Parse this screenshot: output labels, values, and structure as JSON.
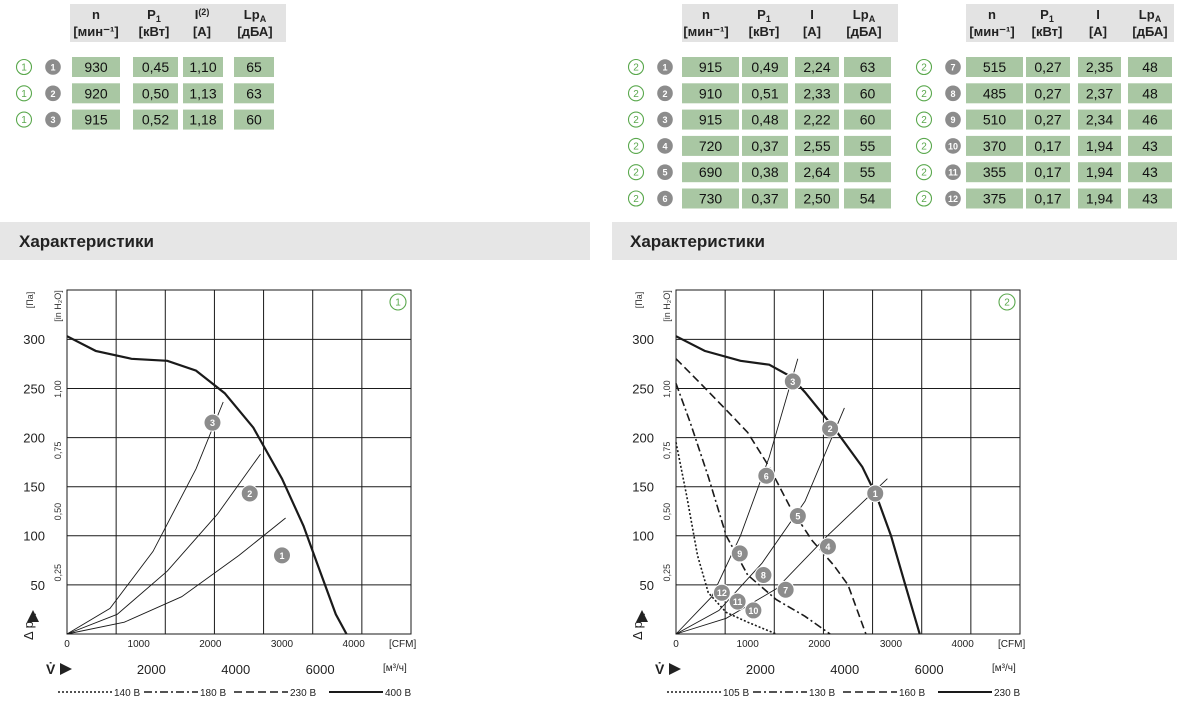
{
  "table_headers": [
    {
      "sym": "n",
      "unit": "[мин⁻¹]"
    },
    {
      "sym": "P",
      "sub": "1",
      "unit": "[кВт]"
    },
    {
      "sym": "I",
      "sup": "(2)",
      "unit": "[А]"
    },
    {
      "sym": "Lp",
      "sub": "A",
      "unit": "[дБА]"
    }
  ],
  "table_headers_right": [
    {
      "sym": "n",
      "unit": "[мин⁻¹]"
    },
    {
      "sym": "P",
      "sub": "1",
      "unit": "[кВт]"
    },
    {
      "sym": "I",
      "unit": "[А]"
    },
    {
      "sym": "Lp",
      "sub": "A",
      "unit": "[дБА]"
    }
  ],
  "table1": {
    "group": "1",
    "rows": [
      {
        "id": "1",
        "n": "930",
        "p": "0,45",
        "i": "1,10",
        "lp": "65"
      },
      {
        "id": "2",
        "n": "920",
        "p": "0,50",
        "i": "1,13",
        "lp": "63"
      },
      {
        "id": "3",
        "n": "915",
        "p": "0,52",
        "i": "1,18",
        "lp": "60"
      }
    ]
  },
  "table2": {
    "group": "2",
    "rows": [
      {
        "id": "1",
        "n": "915",
        "p": "0,49",
        "i": "2,24",
        "lp": "63"
      },
      {
        "id": "2",
        "n": "910",
        "p": "0,51",
        "i": "2,33",
        "lp": "60"
      },
      {
        "id": "3",
        "n": "915",
        "p": "0,48",
        "i": "2,22",
        "lp": "60"
      },
      {
        "id": "4",
        "n": "720",
        "p": "0,37",
        "i": "2,55",
        "lp": "55"
      },
      {
        "id": "5",
        "n": "690",
        "p": "0,38",
        "i": "2,64",
        "lp": "55"
      },
      {
        "id": "6",
        "n": "730",
        "p": "0,37",
        "i": "2,50",
        "lp": "54"
      }
    ]
  },
  "table3": {
    "group": "2",
    "rows": [
      {
        "id": "7",
        "n": "515",
        "p": "0,27",
        "i": "2,35",
        "lp": "48"
      },
      {
        "id": "8",
        "n": "485",
        "p": "0,27",
        "i": "2,37",
        "lp": "48"
      },
      {
        "id": "9",
        "n": "510",
        "p": "0,27",
        "i": "2,34",
        "lp": "46"
      },
      {
        "id": "10",
        "n": "370",
        "p": "0,17",
        "i": "1,94",
        "lp": "43"
      },
      {
        "id": "11",
        "n": "355",
        "p": "0,17",
        "i": "1,94",
        "lp": "43"
      },
      {
        "id": "12",
        "n": "375",
        "p": "0,17",
        "i": "1,94",
        "lp": "43"
      }
    ]
  },
  "section_title": "Характеристики",
  "chart_data": [
    {
      "type": "line",
      "badge": "1",
      "y_unit_pa": "[Па]",
      "y_unit_inh2o": "[in H₂O]",
      "ylabel": "Δ p",
      "ylabel_sub": "fa",
      "xlabel": "V̇",
      "x_unit_cfm": "[CFM]",
      "x_unit_m3h": "[м³/ч]",
      "xlim": [
        0,
        4800
      ],
      "ylim": [
        0,
        300
      ],
      "y_ticks": [
        50,
        100,
        150,
        200,
        250,
        300
      ],
      "y_ticks_in": [
        "0,25",
        "0,50",
        "0,75",
        "1,00"
      ],
      "y_ticks_in_values": [
        62.3,
        124.5,
        186.8,
        249.1
      ],
      "x_ticks_cfm": [
        "0",
        "1000",
        "2000",
        "3000",
        "4000"
      ],
      "x_ticks_m3h": [
        "2000",
        "4000",
        "6000"
      ],
      "x_ticks_m3h_values": [
        2000,
        4000,
        6000
      ],
      "legend": [
        {
          "label": "140 В",
          "dash": "2,2"
        },
        {
          "label": "180 В",
          "dash": "8,3,2,3"
        },
        {
          "label": "230 В",
          "dash": "8,4"
        },
        {
          "label": "400 В",
          "dash": ""
        }
      ],
      "series": [
        {
          "style": "thick",
          "points": [
            [
              0,
              303
            ],
            [
              400,
              288
            ],
            [
              900,
              280
            ],
            [
              1400,
              278
            ],
            [
              1800,
              268
            ],
            [
              2200,
              245
            ],
            [
              2600,
              210
            ],
            [
              3000,
              158
            ],
            [
              3300,
              110
            ],
            [
              3500,
              70
            ],
            [
              3750,
              20
            ],
            [
              3900,
              0
            ]
          ]
        },
        {
          "style": "thin",
          "points": [
            [
              0,
              0
            ],
            [
              800,
              12
            ],
            [
              1600,
              38
            ],
            [
              2400,
              80
            ],
            [
              3050,
              118
            ]
          ]
        },
        {
          "style": "thin",
          "points": [
            [
              0,
              0
            ],
            [
              700,
              20
            ],
            [
              1400,
              64
            ],
            [
              2100,
              122
            ],
            [
              2700,
              183
            ]
          ]
        },
        {
          "style": "thin",
          "points": [
            [
              0,
              0
            ],
            [
              600,
              26
            ],
            [
              1200,
              84
            ],
            [
              1800,
              168
            ],
            [
              2180,
              236
            ]
          ]
        }
      ],
      "markers": [
        {
          "id": "3",
          "x": 2030,
          "y": 215
        },
        {
          "id": "2",
          "x": 2550,
          "y": 143
        },
        {
          "id": "1",
          "x": 3000,
          "y": 80
        }
      ]
    },
    {
      "type": "line",
      "badge": "2",
      "y_unit_pa": "[Па]",
      "y_unit_inh2o": "[in H₂O]",
      "ylabel": "Δ p",
      "ylabel_sub": "fa",
      "xlabel": "V̇",
      "x_unit_cfm": "[CFM]",
      "x_unit_m3h": "[м³/ч]",
      "xlim": [
        0,
        4800
      ],
      "ylim": [
        0,
        300
      ],
      "y_ticks": [
        50,
        100,
        150,
        200,
        250,
        300
      ],
      "y_ticks_in": [
        "0,25",
        "0,50",
        "0,75",
        "1,00"
      ],
      "y_ticks_in_values": [
        62.3,
        124.5,
        186.8,
        249.1
      ],
      "x_ticks_cfm": [
        "0",
        "1000",
        "2000",
        "3000",
        "4000"
      ],
      "x_ticks_m3h": [
        "2000",
        "4000",
        "6000"
      ],
      "x_ticks_m3h_values": [
        2000,
        4000,
        6000
      ],
      "legend": [
        {
          "label": "105 В",
          "dash": "2,2"
        },
        {
          "label": "130 В",
          "dash": "8,3,2,3"
        },
        {
          "label": "160 В",
          "dash": "8,4"
        },
        {
          "label": "230 В",
          "dash": ""
        }
      ],
      "series": [
        {
          "style": "thick",
          "points": [
            [
              0,
              303
            ],
            [
              400,
              288
            ],
            [
              900,
              278
            ],
            [
              1300,
              274
            ],
            [
              1600,
              262
            ],
            [
              1800,
              246
            ],
            [
              2200,
              210
            ],
            [
              2600,
              170
            ],
            [
              2800,
              140
            ],
            [
              3000,
              100
            ],
            [
              3200,
              50
            ],
            [
              3400,
              0
            ]
          ]
        },
        {
          "style": "dash",
          "points": [
            [
              0,
              280
            ],
            [
              300,
              258
            ],
            [
              700,
              228
            ],
            [
              1000,
              205
            ],
            [
              1300,
              170
            ],
            [
              1600,
              128
            ],
            [
              1900,
              95
            ],
            [
              2200,
              70
            ],
            [
              2400,
              50
            ],
            [
              2650,
              0
            ]
          ]
        },
        {
          "style": "dashdot",
          "points": [
            [
              0,
              255
            ],
            [
              200,
              215
            ],
            [
              450,
              160
            ],
            [
              700,
              100
            ],
            [
              1000,
              60
            ],
            [
              1400,
              35
            ],
            [
              1800,
              18
            ],
            [
              2150,
              0
            ]
          ]
        },
        {
          "style": "dot",
          "points": [
            [
              0,
              195
            ],
            [
              150,
              140
            ],
            [
              300,
              80
            ],
            [
              450,
              42
            ],
            [
              700,
              22
            ],
            [
              1000,
              12
            ],
            [
              1400,
              0
            ]
          ]
        },
        {
          "style": "thin",
          "points": [
            [
              0,
              0
            ],
            [
              700,
              16
            ],
            [
              1400,
              46
            ],
            [
              2100,
              99
            ],
            [
              2950,
              158
            ]
          ]
        },
        {
          "style": "thin",
          "points": [
            [
              0,
              0
            ],
            [
              600,
              24
            ],
            [
              1200,
              72
            ],
            [
              1800,
              135
            ],
            [
              2350,
              230
            ]
          ]
        },
        {
          "style": "thin",
          "points": [
            [
              0,
              0
            ],
            [
              500,
              38
            ],
            [
              900,
              100
            ],
            [
              1300,
              180
            ],
            [
              1700,
              280
            ]
          ]
        }
      ],
      "markers": [
        {
          "id": "3",
          "x": 1630,
          "y": 257
        },
        {
          "id": "2",
          "x": 2150,
          "y": 209
        },
        {
          "id": "1",
          "x": 2780,
          "y": 143
        },
        {
          "id": "6",
          "x": 1260,
          "y": 161
        },
        {
          "id": "5",
          "x": 1700,
          "y": 120
        },
        {
          "id": "4",
          "x": 2120,
          "y": 89
        },
        {
          "id": "9",
          "x": 890,
          "y": 82
        },
        {
          "id": "8",
          "x": 1220,
          "y": 60
        },
        {
          "id": "7",
          "x": 1530,
          "y": 45
        },
        {
          "id": "12",
          "x": 640,
          "y": 42
        },
        {
          "id": "11",
          "x": 860,
          "y": 33
        },
        {
          "id": "10",
          "x": 1080,
          "y": 24
        }
      ]
    }
  ]
}
